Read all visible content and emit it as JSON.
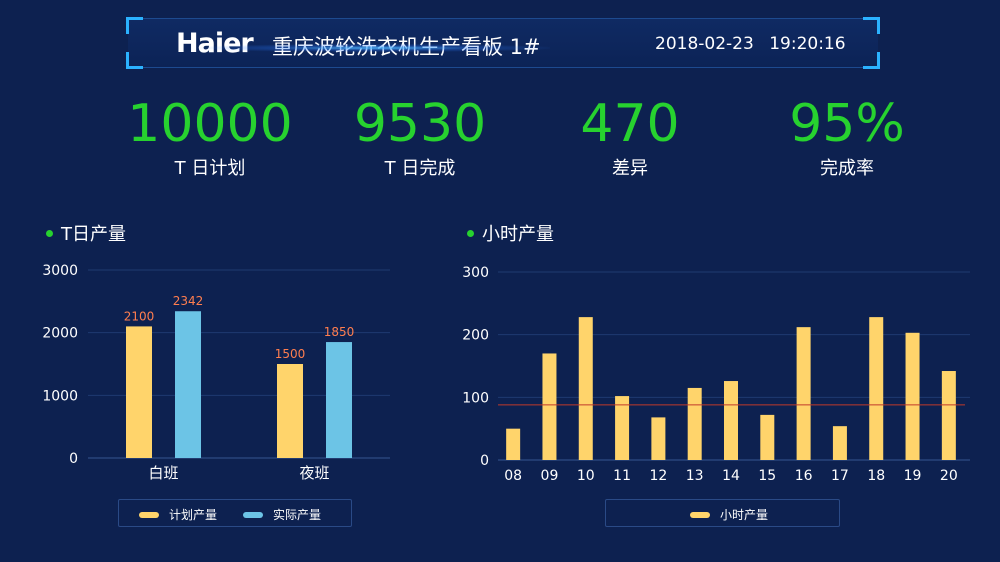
{
  "header": {
    "logo": "Haier",
    "title": "重庆波轮洗衣机生产看板 1#",
    "date": "2018-02-23",
    "time": "19:20:16"
  },
  "kpis": [
    {
      "value": "10000",
      "label": "T 日计划"
    },
    {
      "value": "9530",
      "label": "T 日完成"
    },
    {
      "value": "470",
      "label": "差异"
    },
    {
      "value": "95%",
      "label": "完成率"
    }
  ],
  "colors": {
    "plan": "#ffd46b",
    "actual": "#6cc4e6",
    "kpi": "#27d22f",
    "refline": "#c0392b"
  },
  "chart_data": [
    {
      "type": "bar",
      "title": "T日产量",
      "categories": [
        "白班",
        "夜班"
      ],
      "series": [
        {
          "name": "计划产量",
          "values": [
            2100,
            1500
          ]
        },
        {
          "name": "实际产量",
          "values": [
            2342,
            1850
          ]
        }
      ],
      "ylim": [
        0,
        3000
      ],
      "yticks": [
        "0",
        "1000",
        "2000",
        "3000"
      ],
      "legend": "bottom",
      "grid": true
    },
    {
      "type": "bar",
      "title": "小时产量",
      "categories": [
        "08",
        "09",
        "10",
        "11",
        "12",
        "13",
        "14",
        "15",
        "16",
        "17",
        "18",
        "19",
        "20"
      ],
      "series": [
        {
          "name": "小时产量",
          "values": [
            50,
            170,
            228,
            102,
            68,
            115,
            126,
            72,
            212,
            54,
            228,
            203,
            142
          ]
        }
      ],
      "reference_line": 88,
      "ylim": [
        0,
        300
      ],
      "yticks": [
        "0",
        "100",
        "200",
        "300"
      ],
      "legend": "bottom",
      "grid": true
    }
  ]
}
